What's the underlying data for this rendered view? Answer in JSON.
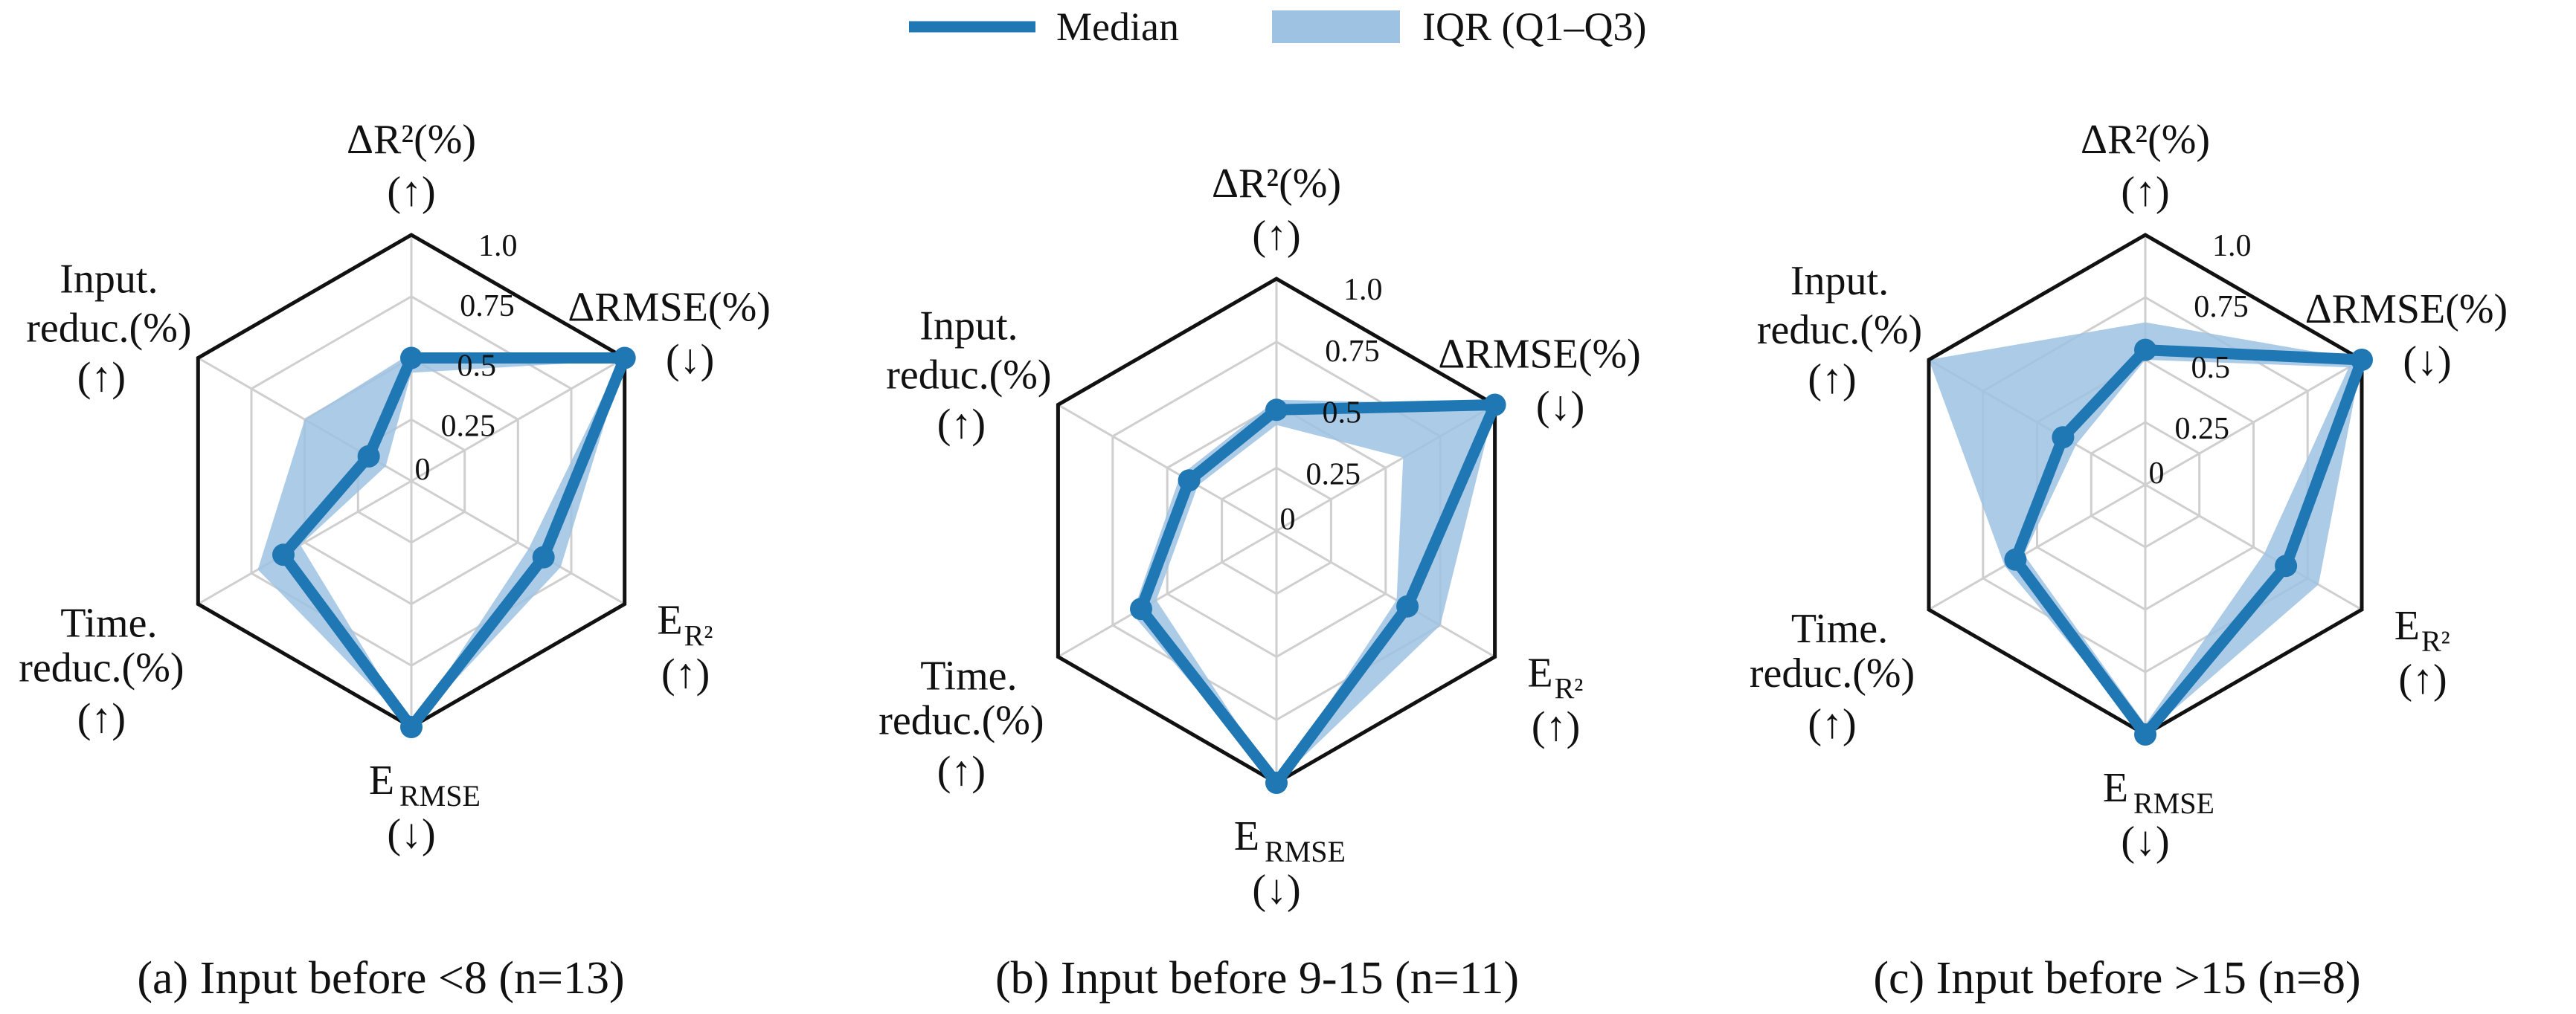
{
  "colors": {
    "median": "#1f77b4",
    "iqr": "#9ec2e2",
    "grid": "#cfcfcf",
    "frame": "#111111"
  },
  "legend": {
    "median_label": "Median",
    "iqr_label": "IQR (Q1–Q3)",
    "placement": "top-center"
  },
  "axes": [
    {
      "main": "ΔR²(%)",
      "sub": "",
      "arrow": "(↑)"
    },
    {
      "main": "ΔRMSE(%)",
      "sub": "",
      "arrow": "(↓)"
    },
    {
      "main": "E",
      "sub": "R²",
      "arrow": "(↑)"
    },
    {
      "main": "E",
      "sub": "RMSE",
      "arrow": "(↓)"
    },
    {
      "main": "Time.",
      "main2": "reduc.(%)",
      "arrow": "(↑)"
    },
    {
      "main": "Input.",
      "main2": "reduc.(%)",
      "arrow": "(↑)"
    }
  ],
  "chart_data": [
    {
      "type": "radar",
      "caption": "(a) Input before <8 (n=13)",
      "r_ticks": [
        "0",
        "0.25",
        "0.5",
        "0.75",
        "1.0"
      ],
      "r_range": [
        0,
        1
      ],
      "grid": true,
      "median": [
        0.5,
        1.0,
        0.62,
        1.0,
        0.6,
        0.2
      ],
      "q1": [
        0.44,
        0.98,
        0.55,
        1.0,
        0.52,
        0.12
      ],
      "q3": [
        0.52,
        1.0,
        0.7,
        1.0,
        0.72,
        0.5
      ]
    },
    {
      "type": "radar",
      "caption": "(b) Input before 9-15 (n=11)",
      "r_ticks": [
        "0",
        "0.25",
        "0.5",
        "0.75",
        "1.0"
      ],
      "r_range": [
        0,
        1
      ],
      "grid": true,
      "median": [
        0.48,
        1.0,
        0.6,
        1.0,
        0.62,
        0.4
      ],
      "q1": [
        0.42,
        0.58,
        0.55,
        1.0,
        0.55,
        0.36
      ],
      "q3": [
        0.52,
        1.0,
        0.75,
        1.0,
        0.66,
        0.44
      ]
    },
    {
      "type": "radar",
      "caption": "(c) Input before >15 (n=8)",
      "r_ticks": [
        "0",
        "0.25",
        "0.5",
        "0.75",
        "1.0"
      ],
      "r_range": [
        0,
        1
      ],
      "grid": true,
      "median": [
        0.54,
        1.0,
        0.65,
        1.0,
        0.6,
        0.38
      ],
      "q1": [
        0.5,
        0.94,
        0.55,
        0.96,
        0.56,
        0.32
      ],
      "q3": [
        0.65,
        1.0,
        0.8,
        1.0,
        0.65,
        1.0
      ]
    }
  ]
}
